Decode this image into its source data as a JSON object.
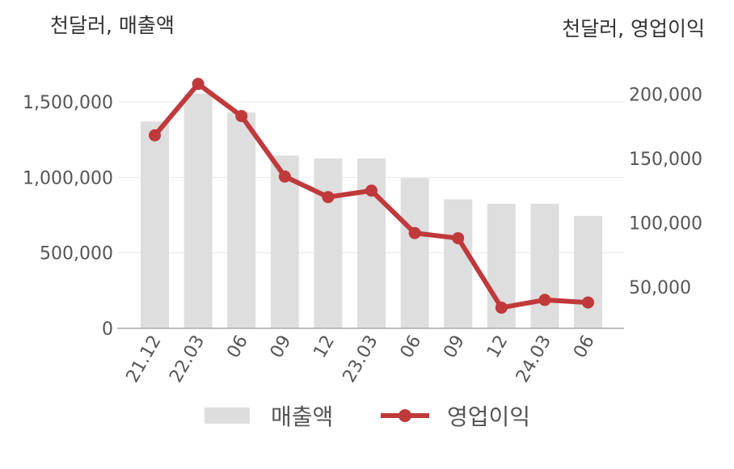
{
  "units": {
    "left": "천달러, 매출액",
    "right": "천달러, 영업이익"
  },
  "legend": {
    "bar_label": "매출액",
    "line_label": "영업이익"
  },
  "colors": {
    "bar": "#dedede",
    "line": "#c0393b",
    "grid": "#e8e8e8",
    "axis": "#aaaaaa"
  },
  "chart_data": {
    "type": "bar",
    "categories": [
      "21.12",
      "22.03",
      "06",
      "09",
      "12",
      "23.03",
      "06",
      "09",
      "12",
      "24.03",
      "06"
    ],
    "series": [
      {
        "name": "매출액",
        "type": "bar",
        "axis": "left",
        "values": [
          1370000,
          1555000,
          1430000,
          1145000,
          1125000,
          1125000,
          995000,
          855000,
          825000,
          825000,
          745000
        ]
      },
      {
        "name": "영업이익",
        "type": "line",
        "axis": "right",
        "values": [
          168000,
          208000,
          183000,
          136000,
          120000,
          125000,
          92000,
          88000,
          34000,
          40000,
          38000
        ]
      }
    ],
    "y_left": {
      "ticks": [
        0,
        500000,
        1000000,
        1500000
      ],
      "tick_labels": [
        "0",
        "500,000",
        "1,000,000",
        "1,500,000"
      ]
    },
    "y_right": {
      "ticks": [
        50000,
        100000,
        150000,
        200000
      ],
      "tick_labels": [
        "50,000",
        "100,000",
        "150,000",
        "200,000"
      ]
    },
    "legend_position": "bottom",
    "grid": true
  }
}
